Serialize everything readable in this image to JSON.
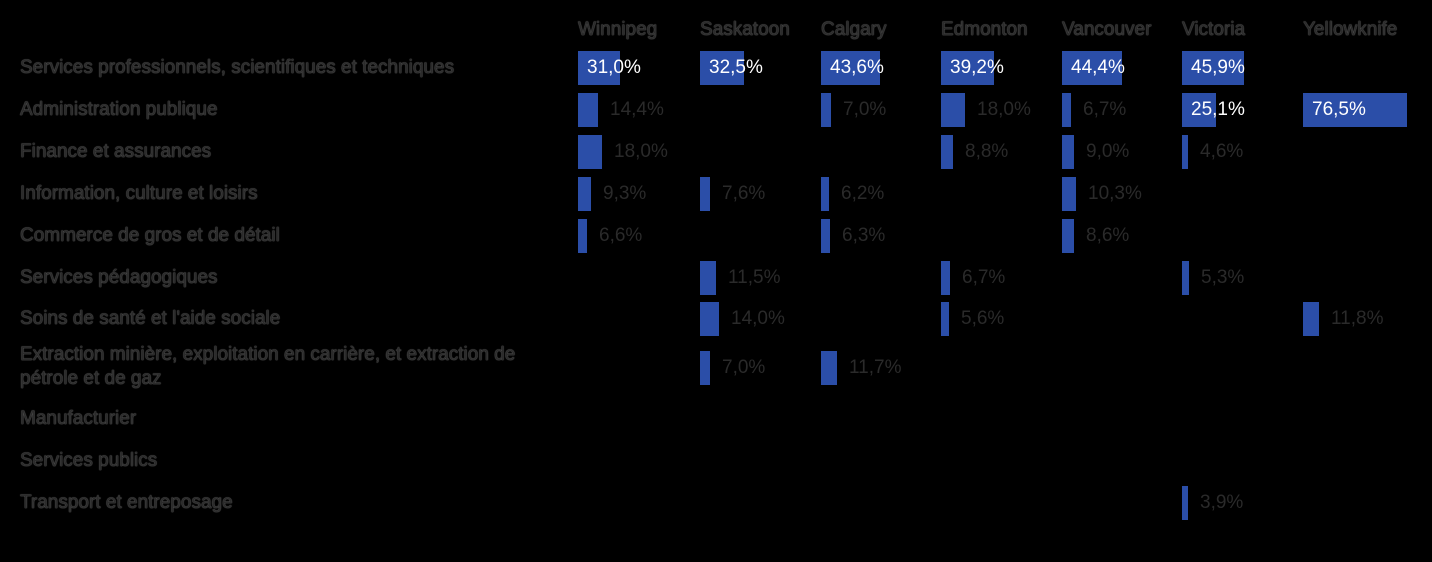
{
  "chart_data": {
    "type": "table",
    "categories": [
      "Services professionnels, scientifiques et techniques",
      "Administration publique",
      "Finance et assurances",
      "Information, culture et loisirs",
      "Commerce de gros et de détail",
      "Services pédagogiques",
      "Soins de santé et l'aide sociale",
      "Extraction minière, exploitation en carrière, et extraction de pétrole et de gaz",
      "Manufacturier",
      "Services publics",
      "Transport et entreposage"
    ],
    "series": [
      {
        "name": "Winnipeg",
        "values": [
          31.0,
          14.4,
          18.0,
          9.3,
          6.6,
          null,
          null,
          null,
          null,
          null,
          null
        ],
        "labels": [
          "31,0%",
          "14,4%",
          "18,0%",
          "9,3%",
          "6,6%",
          "",
          "",
          "",
          "",
          "",
          ""
        ]
      },
      {
        "name": "Saskatoon",
        "values": [
          32.5,
          null,
          null,
          7.6,
          null,
          11.5,
          14.0,
          7.0,
          null,
          null,
          null
        ],
        "labels": [
          "32,5%",
          "",
          "",
          "7,6%",
          "",
          "11,5%",
          "14,0%",
          "7,0%",
          "",
          "",
          ""
        ]
      },
      {
        "name": "Calgary",
        "values": [
          43.6,
          7.0,
          null,
          6.2,
          6.3,
          null,
          null,
          11.7,
          null,
          null,
          null
        ],
        "labels": [
          "43,6%",
          "7,0%",
          "",
          "6,2%",
          "6,3%",
          "",
          "",
          "11,7%",
          "",
          "",
          ""
        ]
      },
      {
        "name": "Edmonton",
        "values": [
          39.2,
          18.0,
          8.8,
          null,
          null,
          6.7,
          5.6,
          null,
          null,
          null,
          null
        ],
        "labels": [
          "39,2%",
          "18,0%",
          "8,8%",
          "",
          "",
          "6,7%",
          "5,6%",
          "",
          "",
          "",
          ""
        ]
      },
      {
        "name": "Vancouver",
        "values": [
          44.4,
          6.7,
          9.0,
          10.3,
          8.6,
          null,
          null,
          null,
          null,
          null,
          null
        ],
        "labels": [
          "44,4%",
          "6,7%",
          "9,0%",
          "10,3%",
          "8,6%",
          "",
          "",
          "",
          "",
          "",
          ""
        ]
      },
      {
        "name": "Victoria",
        "values": [
          45.9,
          25.1,
          4.6,
          null,
          null,
          5.3,
          null,
          null,
          null,
          null,
          3.9
        ],
        "labels": [
          "45,9%",
          "25,1%",
          "4,6%",
          "",
          "",
          "5,3%",
          "",
          "",
          "",
          "",
          "3,9%"
        ]
      },
      {
        "name": "Yellowknife",
        "values": [
          null,
          76.5,
          null,
          null,
          null,
          null,
          11.8,
          null,
          null,
          null,
          null
        ],
        "labels": [
          "",
          "76,5%",
          "",
          "",
          "",
          "",
          "11,8%",
          "",
          "",
          "",
          ""
        ]
      }
    ],
    "xlim": [
      0,
      76.5
    ],
    "colors": {
      "bar": "#2b4ea8",
      "background": "#000000",
      "label_inside": "#ffffff",
      "label_outside": "#2a2a2a"
    }
  }
}
